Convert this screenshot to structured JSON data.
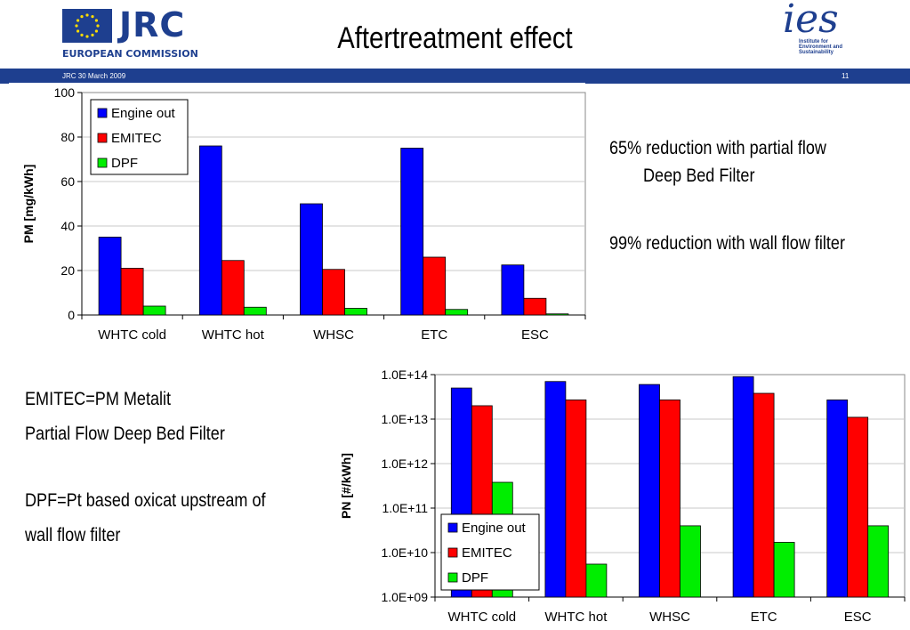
{
  "header": {
    "title": "Aftertreatment effect",
    "jrc_logo_text": "JRC",
    "commission_text": "EUROPEAN COMMISSION",
    "ies_logo_text": "ies",
    "ies_subtitle": "Institute for Environment and Sustainability",
    "footer_left": "JRC  30 March 2009",
    "page_number": "11"
  },
  "notes": {
    "reduction_partial_line1": "65% reduction with partial flow",
    "reduction_partial_line2": "Deep Bed Filter",
    "reduction_wall": "99% reduction with wall flow filter",
    "emitec_line1": "EMITEC=PM Metalit",
    "emitec_line2": "Partial Flow Deep Bed Filter",
    "dpf_line1": "DPF=Pt based oxicat upstream of",
    "dpf_line2": "wall flow filter"
  },
  "colors": {
    "engine_out": "#0000ff",
    "emitec": "#ff0000",
    "dpf": "#00ee00",
    "brand": "#1e3f8f"
  },
  "chart_data": [
    {
      "type": "bar",
      "title": "",
      "xlabel": "",
      "ylabel": "PM [mg/kWh]",
      "ylim": [
        0,
        100
      ],
      "yticks": [
        "0",
        "20",
        "40",
        "60",
        "80",
        "100"
      ],
      "categories": [
        "WHTC cold",
        "WHTC hot",
        "WHSC",
        "ETC",
        "ESC"
      ],
      "series": [
        {
          "name": "Engine out",
          "values": [
            35,
            76,
            50,
            75,
            22.5
          ]
        },
        {
          "name": "EMITEC",
          "values": [
            21,
            24.5,
            20.5,
            26,
            7.5
          ]
        },
        {
          "name": "DPF",
          "values": [
            4,
            3.5,
            3,
            2.5,
            0.5
          ]
        }
      ],
      "legend": "top-left",
      "grid": true
    },
    {
      "type": "bar",
      "title": "",
      "xlabel": "",
      "ylabel": "PN [#/kWh]",
      "yscale": "log",
      "ylim": [
        1000000000.0,
        100000000000000.0
      ],
      "yticks": [
        "1.0E+09",
        "1.0E+10",
        "1.0E+11",
        "1.0E+12",
        "1.0E+13",
        "1.0E+14"
      ],
      "categories": [
        "WHTC cold",
        "WHTC hot",
        "WHSC",
        "ETC",
        "ESC"
      ],
      "series": [
        {
          "name": "Engine out",
          "values": [
            50000000000000.0,
            70000000000000.0,
            60000000000000.0,
            90000000000000.0,
            27000000000000.0
          ]
        },
        {
          "name": "EMITEC",
          "values": [
            20000000000000.0,
            27000000000000.0,
            27000000000000.0,
            38000000000000.0,
            11000000000000.0
          ]
        },
        {
          "name": "DPF",
          "values": [
            380000000000.0,
            5500000000.0,
            40000000000.0,
            17000000000.0,
            40000000000.0
          ]
        }
      ],
      "legend": "bottom-left",
      "grid": true
    }
  ]
}
